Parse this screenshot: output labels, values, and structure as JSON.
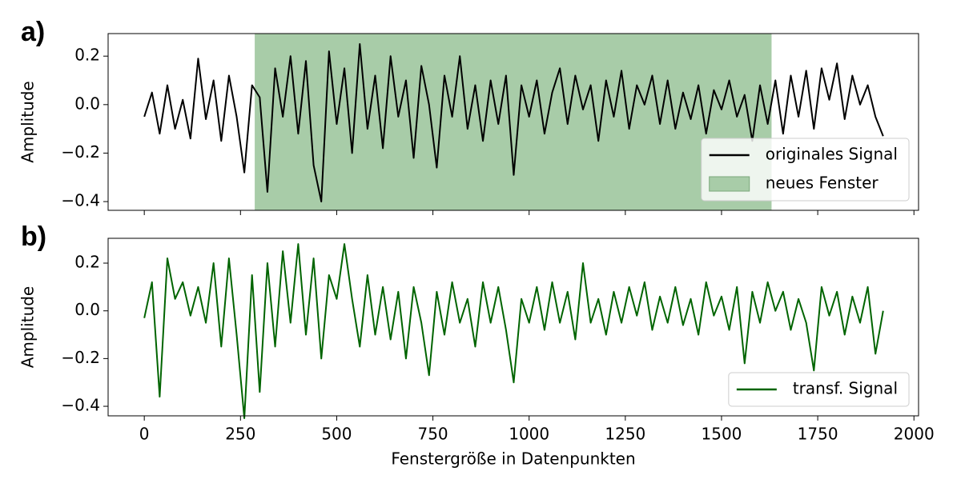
{
  "chart_data": [
    {
      "type": "line",
      "label": "a)",
      "ylabel": "Amplitude",
      "x": [
        0,
        20,
        40,
        60,
        80,
        100,
        120,
        140,
        160,
        180,
        200,
        220,
        240,
        260,
        280,
        300,
        320,
        340,
        360,
        380,
        400,
        420,
        440,
        460,
        480,
        500,
        520,
        540,
        560,
        580,
        600,
        620,
        640,
        660,
        680,
        700,
        720,
        740,
        760,
        780,
        800,
        820,
        840,
        860,
        880,
        900,
        920,
        940,
        960,
        980,
        1000,
        1020,
        1040,
        1060,
        1080,
        1100,
        1120,
        1140,
        1160,
        1180,
        1200,
        1220,
        1240,
        1260,
        1280,
        1300,
        1320,
        1340,
        1360,
        1380,
        1400,
        1420,
        1440,
        1460,
        1480,
        1500,
        1520,
        1540,
        1560,
        1580,
        1600,
        1620,
        1640,
        1660,
        1680,
        1700,
        1720,
        1740,
        1760,
        1780,
        1800,
        1820,
        1840,
        1860,
        1880,
        1900,
        1920
      ],
      "series": [
        {
          "name": "originales Signal",
          "color": "#000000",
          "values": [
            -0.05,
            0.05,
            -0.12,
            0.08,
            -0.1,
            0.02,
            -0.14,
            0.19,
            -0.06,
            0.1,
            -0.15,
            0.12,
            -0.05,
            -0.28,
            0.08,
            0.03,
            -0.36,
            0.15,
            -0.05,
            0.2,
            -0.12,
            0.18,
            -0.25,
            -0.4,
            0.22,
            -0.08,
            0.15,
            -0.2,
            0.25,
            -0.1,
            0.12,
            -0.18,
            0.2,
            -0.05,
            0.1,
            -0.22,
            0.16,
            0.0,
            -0.26,
            0.12,
            -0.05,
            0.2,
            -0.1,
            0.08,
            -0.15,
            0.1,
            -0.08,
            0.12,
            -0.29,
            0.08,
            -0.05,
            0.1,
            -0.12,
            0.05,
            0.15,
            -0.08,
            0.12,
            -0.02,
            0.08,
            -0.15,
            0.1,
            -0.05,
            0.14,
            -0.1,
            0.08,
            0.0,
            0.12,
            -0.08,
            0.1,
            -0.1,
            0.05,
            -0.06,
            0.08,
            -0.12,
            0.06,
            -0.02,
            0.1,
            -0.05,
            0.04,
            -0.15,
            0.08,
            -0.08,
            0.1,
            -0.12,
            0.12,
            -0.05,
            0.14,
            -0.1,
            0.15,
            0.02,
            0.17,
            -0.06,
            0.12,
            0.0,
            0.08,
            -0.05,
            -0.13
          ]
        }
      ],
      "span": {
        "name": "neues Fenster",
        "range": [
          287,
          1630
        ],
        "color": "#a8cca8"
      },
      "xlim": [
        -94,
        2012
      ],
      "ylim": [
        -0.436,
        0.293
      ],
      "xticks": [
        0,
        250,
        500,
        750,
        1000,
        1250,
        1500,
        1750,
        2000
      ],
      "yticks": [
        {
          "value": -0.4,
          "label": "−0.4"
        },
        {
          "value": -0.2,
          "label": "−0.2"
        },
        {
          "value": 0,
          "label": "0.0"
        },
        0.2
      ],
      "legend": "lower right"
    },
    {
      "type": "line",
      "label": "b)",
      "ylabel": "Amplitude",
      "xlabel": "Fenstergröße in Datenpunkten",
      "x": [
        0,
        20,
        40,
        60,
        80,
        100,
        120,
        140,
        160,
        180,
        200,
        220,
        240,
        260,
        280,
        300,
        320,
        340,
        360,
        380,
        400,
        420,
        440,
        460,
        480,
        500,
        520,
        540,
        560,
        580,
        600,
        620,
        640,
        660,
        680,
        700,
        720,
        740,
        760,
        780,
        800,
        820,
        840,
        860,
        880,
        900,
        920,
        940,
        960,
        980,
        1000,
        1020,
        1040,
        1060,
        1080,
        1100,
        1120,
        1140,
        1160,
        1180,
        1200,
        1220,
        1240,
        1260,
        1280,
        1300,
        1320,
        1340,
        1360,
        1380,
        1400,
        1420,
        1440,
        1460,
        1480,
        1500,
        1520,
        1540,
        1560,
        1580,
        1600,
        1620,
        1640,
        1660,
        1680,
        1700,
        1720,
        1740,
        1760,
        1780,
        1800,
        1820,
        1840,
        1860,
        1880,
        1900,
        1920
      ],
      "series": [
        {
          "name": "transf. Signal",
          "color": "#006400",
          "values": [
            -0.03,
            0.12,
            -0.36,
            0.22,
            0.05,
            0.12,
            -0.02,
            0.1,
            -0.05,
            0.2,
            -0.15,
            0.22,
            -0.1,
            -0.45,
            0.15,
            -0.34,
            0.2,
            -0.15,
            0.25,
            -0.05,
            0.28,
            -0.1,
            0.22,
            -0.2,
            0.15,
            0.05,
            0.28,
            0.05,
            -0.15,
            0.15,
            -0.1,
            0.1,
            -0.12,
            0.08,
            -0.2,
            0.1,
            -0.05,
            -0.27,
            0.08,
            -0.1,
            0.12,
            -0.05,
            0.05,
            -0.15,
            0.12,
            -0.05,
            0.1,
            -0.08,
            -0.3,
            0.05,
            -0.05,
            0.1,
            -0.08,
            0.12,
            -0.05,
            0.08,
            -0.12,
            0.2,
            -0.05,
            0.05,
            -0.1,
            0.08,
            -0.05,
            0.1,
            -0.02,
            0.12,
            -0.08,
            0.06,
            -0.05,
            0.1,
            -0.06,
            0.05,
            -0.1,
            0.12,
            -0.02,
            0.06,
            -0.08,
            0.1,
            -0.22,
            0.08,
            -0.05,
            0.12,
            0.0,
            0.08,
            -0.08,
            0.05,
            -0.05,
            -0.25,
            0.1,
            -0.02,
            0.08,
            -0.1,
            0.06,
            -0.05,
            0.1,
            -0.18,
            0.0
          ]
        }
      ],
      "xlim": [
        -94,
        2012
      ],
      "ylim": [
        -0.44,
        0.304
      ],
      "xticks": [
        0,
        250,
        500,
        750,
        1000,
        1250,
        1500,
        1750,
        2000
      ],
      "yticks": [
        {
          "value": -0.4,
          "label": "−0.4"
        },
        {
          "value": -0.2,
          "label": "−0.2"
        },
        {
          "value": 0,
          "label": "0.0"
        },
        0.2
      ],
      "legend": "lower right"
    }
  ]
}
